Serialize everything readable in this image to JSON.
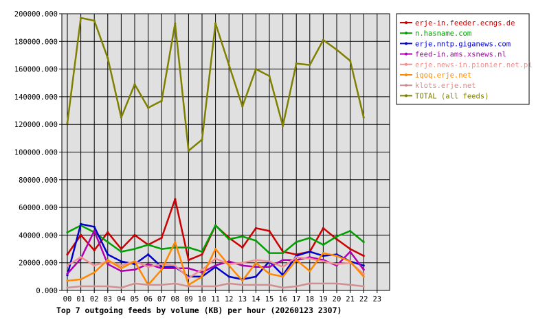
{
  "chart_data": {
    "type": "line",
    "title": "Top 7 outgoing feeds by volume (KB) per hour (20260123 2307)",
    "xlabel": "",
    "ylabel": "",
    "x_ticks": [
      "00",
      "01",
      "02",
      "03",
      "04",
      "05",
      "06",
      "07",
      "08",
      "09",
      "10",
      "11",
      "12",
      "13",
      "14",
      "15",
      "16",
      "17",
      "18",
      "19",
      "20",
      "21",
      "22",
      "23"
    ],
    "y_ticks": [
      "0.000",
      "20000.000",
      "40000.000",
      "60000.000",
      "80000.000",
      "100000.000",
      "120000.000",
      "140000.000",
      "160000.000",
      "180000.000",
      "200000.000"
    ],
    "ylim": [
      0,
      200000
    ],
    "xlim": [
      0,
      23
    ],
    "grid": true,
    "legend_position": "top-right",
    "series": [
      {
        "name": "erje-in.feeder.ecngs.de",
        "color": "#cc0000",
        "values": [
          26000,
          40000,
          29000,
          42000,
          30000,
          40000,
          33000,
          38000,
          66000,
          22000,
          26000,
          47000,
          38000,
          31000,
          45000,
          43000,
          28000,
          26000,
          28000,
          45000,
          37000,
          30000,
          25000
        ]
      },
      {
        "name": "n.hasname.com",
        "color": "#00a000",
        "values": [
          42000,
          47000,
          42000,
          35000,
          28000,
          30000,
          33000,
          30000,
          31000,
          31000,
          28000,
          47000,
          37000,
          39000,
          36000,
          27000,
          27000,
          35000,
          38000,
          33000,
          39000,
          43000,
          35000
        ]
      },
      {
        "name": "erje.nntp.giganews.com",
        "color": "#0000cc",
        "values": [
          11000,
          48000,
          46000,
          26000,
          21000,
          19000,
          26000,
          17000,
          17000,
          10000,
          10000,
          17000,
          10000,
          8000,
          10000,
          21000,
          11000,
          25000,
          28000,
          25000,
          26000,
          21000,
          18000
        ]
      },
      {
        "name": "feed-in.ams.xsnews.nl",
        "color": "#b000b0",
        "values": [
          12000,
          23000,
          43000,
          19000,
          14000,
          15000,
          19000,
          16000,
          16000,
          16000,
          13000,
          18000,
          21000,
          18000,
          17000,
          17000,
          22000,
          22000,
          24000,
          22000,
          18000,
          28000,
          15000
        ]
      },
      {
        "name": "erje.news-in.pionier.net.pl",
        "color": "#f09090",
        "values": [
          18000,
          24000,
          18000,
          21000,
          18000,
          21000,
          17000,
          19000,
          18000,
          9000,
          15000,
          23000,
          19000,
          20000,
          22000,
          21000,
          17000,
          24000,
          23000,
          21000,
          19000,
          20000,
          12000
        ]
      },
      {
        "name": "iqoq.erje.net",
        "color": "#ff8800",
        "values": [
          7000,
          8000,
          13000,
          22000,
          16000,
          21000,
          4000,
          15000,
          35000,
          4000,
          10000,
          30000,
          18000,
          7000,
          20000,
          12000,
          10000,
          22000,
          14000,
          27000,
          25000,
          21000,
          10000
        ]
      },
      {
        "name": "klots.erje.net",
        "color": "#d09090",
        "values": [
          2000,
          3000,
          3000,
          3000,
          2000,
          5000,
          4000,
          4000,
          5000,
          3000,
          3000,
          3000,
          5000,
          4000,
          4000,
          4000,
          2000,
          3000,
          5000,
          5000,
          5000,
          4000,
          3000
        ]
      },
      {
        "name": "TOTAL (all feeds)",
        "color": "#808000",
        "values": [
          121000,
          197000,
          195000,
          168000,
          125000,
          149000,
          132000,
          137000,
          193000,
          101000,
          109000,
          193000,
          163000,
          133000,
          160000,
          155000,
          119000,
          164000,
          163000,
          181000,
          174000,
          166000,
          125000
        ]
      }
    ]
  }
}
